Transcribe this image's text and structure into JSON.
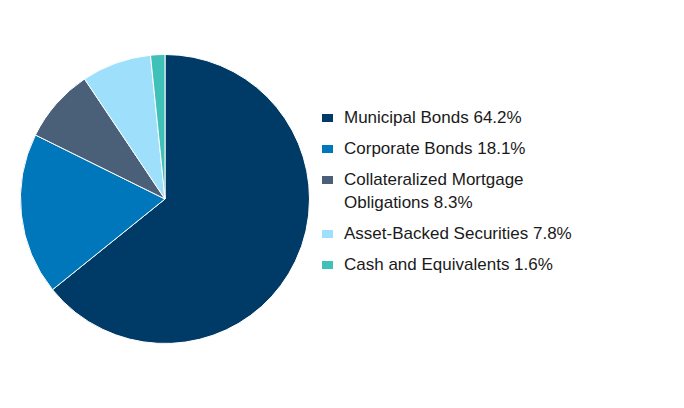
{
  "chart_data": {
    "type": "pie",
    "categories": [
      "Municipal Bonds 64.2%",
      "Corporate Bonds 18.1%",
      "Collateralized Mortgage Obligations 8.3%",
      "Asset-Backed Securities 7.8%",
      "Cash and Equivalents 1.6%"
    ],
    "values": [
      64.2,
      18.1,
      8.3,
      7.8,
      1.6
    ],
    "colors": [
      "#003a66",
      "#0077bb",
      "#4a5f78",
      "#9ee0fb",
      "#3fc1b9"
    ],
    "legend": "right"
  }
}
